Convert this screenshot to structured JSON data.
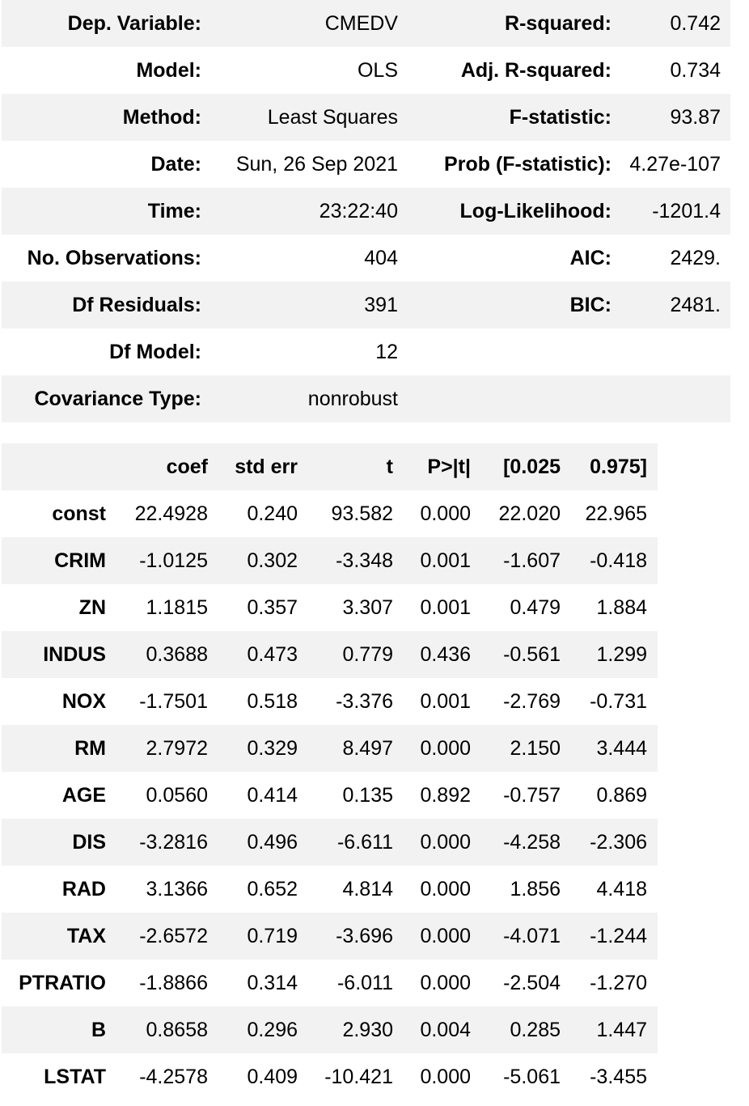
{
  "summary_rows": [
    {
      "label1": "Dep. Variable:",
      "value1": "CMEDV",
      "label2": "R-squared:",
      "value2": "0.742"
    },
    {
      "label1": "Model:",
      "value1": "OLS",
      "label2": "Adj. R-squared:",
      "value2": "0.734"
    },
    {
      "label1": "Method:",
      "value1": "Least Squares",
      "label2": "F-statistic:",
      "value2": "93.87"
    },
    {
      "label1": "Date:",
      "value1": "Sun, 26 Sep 2021",
      "label2": "Prob (F-statistic):",
      "value2": "4.27e-107"
    },
    {
      "label1": "Time:",
      "value1": "23:22:40",
      "label2": "Log-Likelihood:",
      "value2": "-1201.4"
    },
    {
      "label1": "No. Observations:",
      "value1": "404",
      "label2": "AIC:",
      "value2": "2429."
    },
    {
      "label1": "Df Residuals:",
      "value1": "391",
      "label2": "BIC:",
      "value2": "2481."
    },
    {
      "label1": "Df Model:",
      "value1": "12",
      "label2": "",
      "value2": ""
    },
    {
      "label1": "Covariance Type:",
      "value1": "nonrobust",
      "label2": "",
      "value2": ""
    }
  ],
  "coef_headers": [
    "",
    "coef",
    "std err",
    "t",
    "P>|t|",
    "[0.025",
    "0.975]"
  ],
  "coef_rows": [
    [
      "const",
      "22.4928",
      "0.240",
      "93.582",
      "0.000",
      "22.020",
      "22.965"
    ],
    [
      "CRIM",
      "-1.0125",
      "0.302",
      "-3.348",
      "0.001",
      "-1.607",
      "-0.418"
    ],
    [
      "ZN",
      "1.1815",
      "0.357",
      "3.307",
      "0.001",
      "0.479",
      "1.884"
    ],
    [
      "INDUS",
      "0.3688",
      "0.473",
      "0.779",
      "0.436",
      "-0.561",
      "1.299"
    ],
    [
      "NOX",
      "-1.7501",
      "0.518",
      "-3.376",
      "0.001",
      "-2.769",
      "-0.731"
    ],
    [
      "RM",
      "2.7972",
      "0.329",
      "8.497",
      "0.000",
      "2.150",
      "3.444"
    ],
    [
      "AGE",
      "0.0560",
      "0.414",
      "0.135",
      "0.892",
      "-0.757",
      "0.869"
    ],
    [
      "DIS",
      "-3.2816",
      "0.496",
      "-6.611",
      "0.000",
      "-4.258",
      "-2.306"
    ],
    [
      "RAD",
      "3.1366",
      "0.652",
      "4.814",
      "0.000",
      "1.856",
      "4.418"
    ],
    [
      "TAX",
      "-2.6572",
      "0.719",
      "-3.696",
      "0.000",
      "-4.071",
      "-1.244"
    ],
    [
      "PTRATIO",
      "-1.8866",
      "0.314",
      "-6.011",
      "0.000",
      "-2.504",
      "-1.270"
    ],
    [
      "B",
      "0.8658",
      "0.296",
      "2.930",
      "0.004",
      "0.285",
      "1.447"
    ],
    [
      "LSTAT",
      "-4.2578",
      "0.409",
      "-10.421",
      "0.000",
      "-5.061",
      "-3.455"
    ]
  ]
}
